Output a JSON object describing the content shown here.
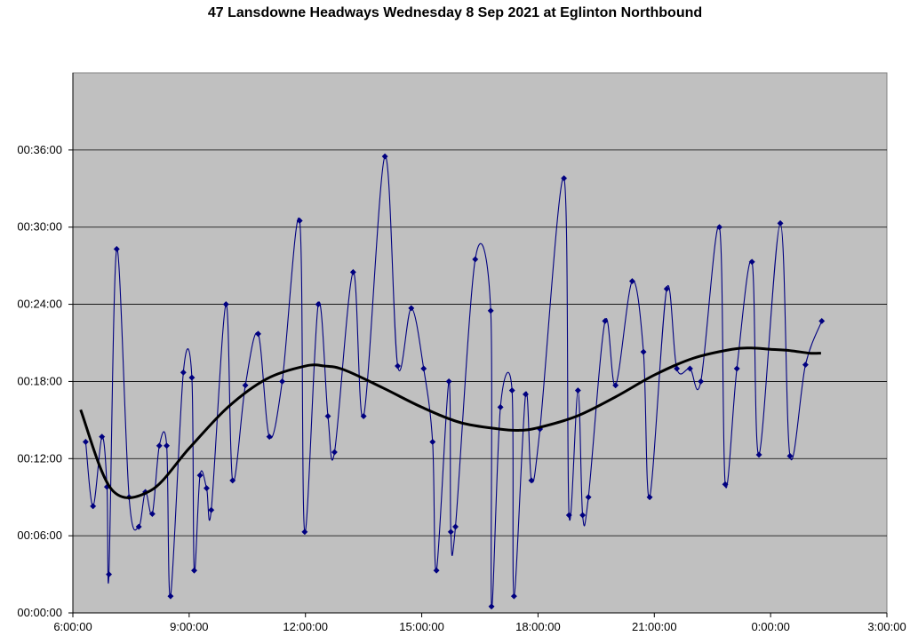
{
  "chart_data": {
    "type": "line",
    "title": "47 Lansdowne Headways Wednesday 8 Sep 2021 at Eglinton Northbound",
    "xlabel": "",
    "ylabel": "",
    "x_unit": "hours since 0:00 on 8 Sep 2021",
    "y_unit": "minutes",
    "xlim": [
      6,
      27
    ],
    "ylim": [
      0,
      42
    ],
    "x_ticks": [
      {
        "value": 6,
        "label": "6:00:00"
      },
      {
        "value": 9,
        "label": "9:00:00"
      },
      {
        "value": 12,
        "label": "12:00:00"
      },
      {
        "value": 15,
        "label": "15:00:00"
      },
      {
        "value": 18,
        "label": "18:00:00"
      },
      {
        "value": 21,
        "label": "21:00:00"
      },
      {
        "value": 24,
        "label": "0:00:00"
      },
      {
        "value": 27,
        "label": "3:00:00"
      }
    ],
    "y_ticks": [
      {
        "value": 0,
        "label": "00:00:00"
      },
      {
        "value": 6,
        "label": "00:06:00"
      },
      {
        "value": 12,
        "label": "00:12:00"
      },
      {
        "value": 18,
        "label": "00:18:00"
      },
      {
        "value": 24,
        "label": "00:24:00"
      },
      {
        "value": 30,
        "label": "00:30:00"
      },
      {
        "value": 36,
        "label": "00:36:00"
      }
    ],
    "grid": true,
    "legend": "none",
    "colors": {
      "plot_bg": "#c0c0c0",
      "series": "#000080",
      "trend": "#000000",
      "grid": "#000000"
    },
    "series": [
      {
        "values_x": [
          6.33,
          6.52,
          6.75,
          6.88,
          6.93,
          7.13,
          7.45,
          7.7,
          7.87,
          8.05,
          8.23,
          8.42,
          8.52,
          8.85,
          9.07,
          9.13,
          9.28,
          9.45,
          9.57,
          9.95,
          10.12,
          10.45,
          10.78,
          11.07,
          11.4,
          11.85,
          11.98,
          12.33,
          12.58,
          12.75,
          13.23,
          13.5,
          14.05,
          14.38,
          14.73,
          15.05,
          15.28,
          15.38,
          15.7,
          15.75,
          15.87,
          16.38,
          16.78,
          16.8,
          17.03,
          17.33,
          17.38,
          17.68,
          17.83,
          18.05,
          18.67,
          18.8,
          19.03,
          19.15,
          19.3,
          19.73,
          20.0,
          20.43,
          20.72,
          20.88,
          21.32,
          21.58,
          21.92,
          22.2,
          22.68,
          22.83,
          23.13,
          23.52,
          23.7,
          24.25,
          24.5,
          24.9,
          25.32
        ],
        "values": [
          13.3,
          8.3,
          13.7,
          9.8,
          3.0,
          28.3,
          9.0,
          6.7,
          9.4,
          7.7,
          13.0,
          13.0,
          1.3,
          18.7,
          18.3,
          3.3,
          10.7,
          9.7,
          8.0,
          24.0,
          10.3,
          17.7,
          21.7,
          13.7,
          18.0,
          30.5,
          6.3,
          24.0,
          15.3,
          12.5,
          26.5,
          15.3,
          35.5,
          19.2,
          23.7,
          19.0,
          13.3,
          3.3,
          18.0,
          6.3,
          6.7,
          27.5,
          23.5,
          0.5,
          16.0,
          17.3,
          1.3,
          17.0,
          10.3,
          14.3,
          33.8,
          7.6,
          17.3,
          7.6,
          9.0,
          22.7,
          17.7,
          25.8,
          20.3,
          9.0,
          25.2,
          19.0,
          19.0,
          18.0,
          30.0,
          10.0,
          19.0,
          27.3,
          12.3,
          30.3,
          12.2,
          19.3,
          22.7
        ]
      }
    ],
    "trendline": {
      "type": "polynomial",
      "values_x": [
        6.2,
        7.0,
        8.0,
        9.0,
        10.0,
        11.0,
        12.0,
        12.5,
        13.0,
        14.0,
        15.0,
        16.0,
        17.0,
        17.5,
        18.0,
        19.0,
        20.0,
        21.0,
        22.0,
        23.0,
        23.5,
        24.0,
        24.5,
        25.0,
        25.3
      ],
      "values": [
        15.8,
        9.6,
        9.5,
        12.8,
        16.0,
        18.2,
        19.2,
        19.2,
        18.9,
        17.5,
        16.0,
        14.8,
        14.3,
        14.2,
        14.4,
        15.3,
        16.8,
        18.5,
        19.8,
        20.5,
        20.6,
        20.5,
        20.4,
        20.2,
        20.2
      ]
    }
  }
}
